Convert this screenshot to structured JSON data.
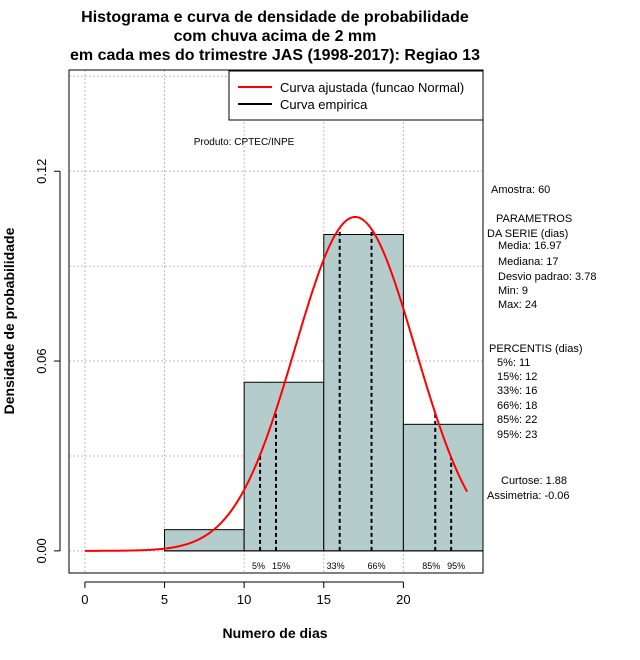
{
  "chart_data": {
    "type": "histogram",
    "title_lines": [
      "Histograma e curva de densidade de probabilidade",
      "com chuva acima de 2 mm",
      "em cada mes do trimestre JAS (1998-2017): Regiao 13"
    ],
    "xlabel": "Numero de dias",
    "ylabel": "Densidade de probabilidade",
    "xlim": [
      -1,
      25
    ],
    "ylim": [
      -0.007,
      0.152
    ],
    "x_ticks": [
      0,
      5,
      10,
      15,
      20
    ],
    "y_ticks": [
      0.0,
      0.06,
      0.12
    ],
    "y_tick_labels": [
      "0.00",
      "0.06",
      "0.12"
    ],
    "grid_x": [
      0,
      5,
      10,
      15,
      20
    ],
    "grid_y": [
      0.0,
      0.03,
      0.06,
      0.09,
      0.12,
      0.15
    ],
    "bins": [
      {
        "from": 5,
        "to": 10,
        "density": 0.0067
      },
      {
        "from": 10,
        "to": 15,
        "density": 0.0533
      },
      {
        "from": 15,
        "to": 20,
        "density": 0.1
      },
      {
        "from": 20,
        "to": 25,
        "density": 0.04
      }
    ],
    "bar_color": "#b5cccc",
    "curve": {
      "name": "Curva ajustada (funcao Normal)",
      "distribution": "normal",
      "mean": 16.97,
      "sd": 3.78,
      "x_from": 0,
      "x_to": 24,
      "color": "#ff0000"
    },
    "empirical_curve": {
      "name": "Curva empirica",
      "color": "#000000"
    },
    "legend": {
      "placement": "top-right",
      "entries": [
        {
          "label": "Curva ajustada (funcao Normal)",
          "color": "#ff0000"
        },
        {
          "label": "Curva empirica",
          "color": "#000000"
        }
      ]
    },
    "percentile_lines": [
      {
        "label": "5%",
        "x": 11
      },
      {
        "label": "15%",
        "x": 12
      },
      {
        "label": "33%",
        "x": 16
      },
      {
        "label": "66%",
        "x": 18
      },
      {
        "label": "85%",
        "x": 22
      },
      {
        "label": "95%",
        "x": 23
      }
    ],
    "source_label": "Produto: CPTEC/INPE",
    "stats_lines": [
      "Amostra: 60",
      "PARAMETROS",
      "DA SERIE (dias)",
      "Media: 16.97",
      "Mediana: 17",
      "Desvio padrao: 3.78",
      "Min: 9",
      "Max: 24",
      "PERCENTIS (dias)",
      "5%: 11",
      "15%: 12",
      "33%: 16",
      "66%: 18",
      "85%: 22",
      "95%: 23",
      "Curtose: 1.88",
      "Assimetria: -0.06"
    ]
  }
}
